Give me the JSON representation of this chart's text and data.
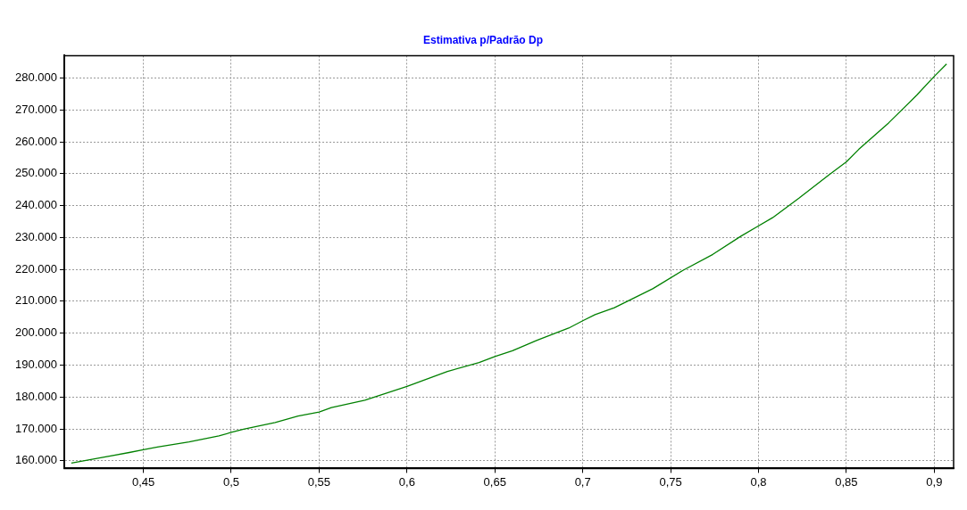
{
  "chart_data": {
    "type": "line",
    "title": "Estimativa p/Padrão Dp",
    "series": [
      {
        "color": "#008000",
        "x": [
          0.409,
          0.425,
          0.442,
          0.45,
          0.458,
          0.476,
          0.493,
          0.5,
          0.507,
          0.525,
          0.538,
          0.55,
          0.557,
          0.576,
          0.6,
          0.623,
          0.641,
          0.65,
          0.66,
          0.674,
          0.692,
          0.7,
          0.707,
          0.718,
          0.74,
          0.757,
          0.774,
          0.79,
          0.799,
          0.808,
          0.823,
          0.84,
          0.85,
          0.857,
          0.874,
          0.89,
          0.9,
          0.907
        ],
        "values": [
          159300,
          160900,
          162600,
          163500,
          164300,
          165900,
          167800,
          168900,
          169900,
          172000,
          174000,
          175300,
          176700,
          179000,
          183300,
          188000,
          190800,
          192700,
          194500,
          197800,
          201600,
          203900,
          205800,
          208000,
          214000,
          219700,
          224700,
          230400,
          233300,
          236200,
          242300,
          249600,
          253700,
          257600,
          265900,
          274600,
          280500,
          284400
        ]
      }
    ],
    "xlim": [
      0.405,
      0.911
    ],
    "xticks": [
      {
        "value": 0.45,
        "label": "0,45"
      },
      {
        "value": 0.5,
        "label": "0,5"
      },
      {
        "value": 0.55,
        "label": "0,55"
      },
      {
        "value": 0.6,
        "label": "0,6"
      },
      {
        "value": 0.65,
        "label": "0,65"
      },
      {
        "value": 0.7,
        "label": "0,7"
      },
      {
        "value": 0.75,
        "label": "0,75"
      },
      {
        "value": 0.8,
        "label": "0,8"
      },
      {
        "value": 0.85,
        "label": "0,85"
      },
      {
        "value": 0.9,
        "label": "0,9"
      }
    ],
    "ylim": [
      157600,
      287000
    ],
    "yticks": [
      {
        "value": 160000,
        "label": "160.000"
      },
      {
        "value": 170000,
        "label": "170.000"
      },
      {
        "value": 180000,
        "label": "180.000"
      },
      {
        "value": 190000,
        "label": "190.000"
      },
      {
        "value": 200000,
        "label": "200.000"
      },
      {
        "value": 210000,
        "label": "210.000"
      },
      {
        "value": 220000,
        "label": "220.000"
      },
      {
        "value": 230000,
        "label": "230.000"
      },
      {
        "value": 240000,
        "label": "240.000"
      },
      {
        "value": 250000,
        "label": "250.000"
      },
      {
        "value": 260000,
        "label": "260.000"
      },
      {
        "value": 270000,
        "label": "270.000"
      },
      {
        "value": 280000,
        "label": "280.000"
      }
    ],
    "grid": true,
    "legend": false,
    "marker": "none",
    "line_style": "solid"
  }
}
